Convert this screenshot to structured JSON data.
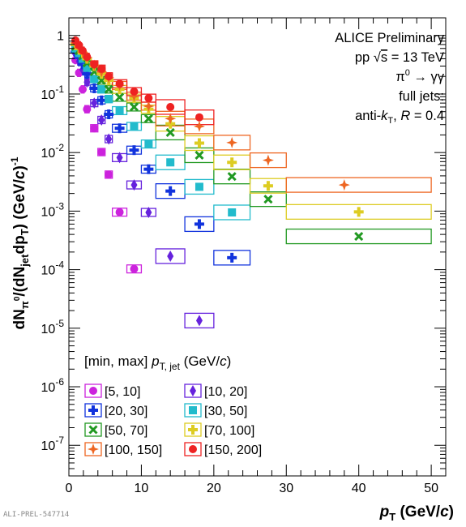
{
  "chart_data": {
    "type": "scatter",
    "title": "",
    "ylabel_parts": {
      "a": "dN",
      "b": "π",
      "c": "0",
      "d": "/(dN",
      "e": "jet",
      "f": "dp",
      "g": "T",
      "h": ") (GeV/",
      "i": "c",
      "j": ")",
      "k": "-1"
    },
    "xlabel_parts": {
      "a": "p",
      "b": "T",
      "c": " (GeV/",
      "d": "c",
      "e": ")"
    },
    "xlim": [
      0,
      52
    ],
    "ylim": [
      3e-08,
      2
    ],
    "yscale": "log",
    "x_ticks": [
      "0",
      "10",
      "20",
      "30",
      "40",
      "50"
    ],
    "y_ticks": [
      {
        "base": "1",
        "exp": ""
      },
      {
        "base": "10",
        "exp": "-1"
      },
      {
        "base": "10",
        "exp": "-2"
      },
      {
        "base": "10",
        "exp": "-3"
      },
      {
        "base": "10",
        "exp": "-4"
      },
      {
        "base": "10",
        "exp": "-5"
      },
      {
        "base": "10",
        "exp": "-6"
      },
      {
        "base": "10",
        "exp": "-7"
      }
    ],
    "annotations": {
      "line1": "ALICE Preliminary",
      "line2_pp": "pp",
      "line2_sqrt": "√",
      "line2_s": "s",
      "line2_val": " = 13 TeV",
      "line3_pi": "π",
      "line3_sup": "0",
      "line3_rest": " → γγ",
      "line4": "full jets:",
      "line5_a": "anti-",
      "line5_k": "k",
      "line5_T": "T",
      "line5_b": ", ",
      "line5_R": "R",
      "line5_c": " = 0.4"
    },
    "legend_title_parts": {
      "a": "[min, max] ",
      "b": "p",
      "c": "T, jet",
      "d": " (GeV/",
      "e": "c",
      "f": ")"
    },
    "series": [
      {
        "name": "[5, 10]",
        "color": "#cc22dd",
        "marker": "circle",
        "points": [
          [
            0.9,
            0.38,
            0.8,
            1.0
          ],
          [
            1.4,
            0.23,
            1.2,
            1.6
          ],
          [
            1.9,
            0.12,
            1.7,
            2.1
          ],
          [
            2.5,
            0.055,
            2.2,
            2.8
          ],
          [
            3.5,
            0.026,
            3.0,
            4.0
          ],
          [
            4.5,
            0.0102,
            4.0,
            5.0
          ],
          [
            5.5,
            0.0042,
            5.0,
            6.0
          ],
          [
            7.0,
            0.00096,
            6.0,
            8.0
          ],
          [
            9.0,
            0.000103,
            8.0,
            10.0
          ]
        ]
      },
      {
        "name": "[10, 20]",
        "color": "#6622dd",
        "marker": "diamond",
        "points": [
          [
            0.9,
            0.48,
            0.8,
            1.0
          ],
          [
            1.4,
            0.36,
            1.2,
            1.6
          ],
          [
            1.9,
            0.26,
            1.7,
            2.1
          ],
          [
            2.5,
            0.16,
            2.2,
            2.8
          ],
          [
            3.5,
            0.07,
            3.0,
            4.0
          ],
          [
            4.5,
            0.036,
            4.0,
            5.0
          ],
          [
            5.5,
            0.017,
            5.0,
            6.0
          ],
          [
            7.0,
            0.0082,
            6.0,
            8.0
          ],
          [
            9.0,
            0.0028,
            8.0,
            10.0
          ],
          [
            11.0,
            0.00095,
            10.0,
            12.0
          ],
          [
            14.0,
            0.00017,
            12.0,
            16.0
          ],
          [
            18.0,
            1.35e-05,
            16.0,
            20.0
          ]
        ]
      },
      {
        "name": "[20, 30]",
        "color": "#1133dd",
        "marker": "cross",
        "points": [
          [
            0.9,
            0.52,
            0.8,
            1.0
          ],
          [
            1.4,
            0.42,
            1.2,
            1.6
          ],
          [
            1.9,
            0.32,
            1.7,
            2.1
          ],
          [
            2.5,
            0.22,
            2.2,
            2.8
          ],
          [
            3.5,
            0.125,
            3.0,
            4.0
          ],
          [
            4.5,
            0.078,
            4.0,
            5.0
          ],
          [
            5.5,
            0.045,
            5.0,
            6.0
          ],
          [
            7.0,
            0.026,
            6.0,
            8.0
          ],
          [
            9.0,
            0.011,
            8.0,
            10.0
          ],
          [
            11.0,
            0.0052,
            10.0,
            12.0
          ],
          [
            14.0,
            0.0022,
            12.0,
            16.0
          ],
          [
            18.0,
            0.0006,
            16.0,
            20.0
          ],
          [
            22.5,
            0.00016,
            20.0,
            25.0
          ]
        ]
      },
      {
        "name": "[30, 50]",
        "color": "#22bbcc",
        "marker": "square",
        "points": [
          [
            0.9,
            0.6,
            0.8,
            1.0
          ],
          [
            1.4,
            0.5,
            1.2,
            1.6
          ],
          [
            1.9,
            0.4,
            1.7,
            2.1
          ],
          [
            2.5,
            0.28,
            2.2,
            2.8
          ],
          [
            3.5,
            0.18,
            3.0,
            4.0
          ],
          [
            4.5,
            0.12,
            4.0,
            5.0
          ],
          [
            5.5,
            0.082,
            5.0,
            6.0
          ],
          [
            7.0,
            0.052,
            6.0,
            8.0
          ],
          [
            9.0,
            0.028,
            8.0,
            10.0
          ],
          [
            11.0,
            0.014,
            10.0,
            12.0
          ],
          [
            14.0,
            0.0068,
            12.0,
            16.0
          ],
          [
            18.0,
            0.0026,
            16.0,
            20.0
          ],
          [
            22.5,
            0.00095,
            20.0,
            25.0
          ]
        ]
      },
      {
        "name": "[50, 70]",
        "color": "#229922",
        "marker": "x",
        "points": [
          [
            0.9,
            0.65,
            0.8,
            1.0
          ],
          [
            1.4,
            0.55,
            1.2,
            1.6
          ],
          [
            1.9,
            0.45,
            1.7,
            2.1
          ],
          [
            2.5,
            0.34,
            2.2,
            2.8
          ],
          [
            3.5,
            0.24,
            3.0,
            4.0
          ],
          [
            4.5,
            0.17,
            4.0,
            5.0
          ],
          [
            5.5,
            0.12,
            5.0,
            6.0
          ],
          [
            7.0,
            0.088,
            6.0,
            8.0
          ],
          [
            9.0,
            0.06,
            8.0,
            10.0
          ],
          [
            11.0,
            0.038,
            10.0,
            12.0
          ],
          [
            14.0,
            0.022,
            12.0,
            16.0
          ],
          [
            18.0,
            0.009,
            16.0,
            20.0
          ],
          [
            22.5,
            0.0039,
            20.0,
            25.0
          ],
          [
            27.5,
            0.0016,
            25.0,
            30.0
          ],
          [
            40.0,
            0.00037,
            30.0,
            50.0
          ]
        ]
      },
      {
        "name": "[70, 100]",
        "color": "#ddcc22",
        "marker": "cross",
        "points": [
          [
            0.9,
            0.7,
            0.8,
            1.0
          ],
          [
            1.4,
            0.6,
            1.2,
            1.6
          ],
          [
            1.9,
            0.5,
            1.7,
            2.1
          ],
          [
            2.5,
            0.4,
            2.2,
            2.8
          ],
          [
            3.5,
            0.3,
            3.0,
            4.0
          ],
          [
            4.5,
            0.22,
            4.0,
            5.0
          ],
          [
            5.5,
            0.17,
            5.0,
            6.0
          ],
          [
            7.0,
            0.12,
            6.0,
            8.0
          ],
          [
            9.0,
            0.085,
            8.0,
            10.0
          ],
          [
            11.0,
            0.055,
            10.0,
            12.0
          ],
          [
            14.0,
            0.031,
            12.0,
            16.0
          ],
          [
            18.0,
            0.0145,
            16.0,
            20.0
          ],
          [
            22.5,
            0.0068,
            20.0,
            25.0
          ],
          [
            27.5,
            0.0027,
            25.0,
            30.0
          ],
          [
            40.0,
            0.00097,
            30.0,
            50.0
          ]
        ]
      },
      {
        "name": "[100, 150]",
        "color": "#ee6622",
        "marker": "star",
        "points": [
          [
            0.9,
            0.75,
            0.8,
            1.0
          ],
          [
            1.4,
            0.62,
            1.2,
            1.6
          ],
          [
            1.9,
            0.52,
            1.7,
            2.1
          ],
          [
            2.5,
            0.42,
            2.2,
            2.8
          ],
          [
            3.5,
            0.31,
            3.0,
            4.0
          ],
          [
            4.5,
            0.24,
            4.0,
            5.0
          ],
          [
            5.5,
            0.19,
            5.0,
            6.0
          ],
          [
            7.0,
            0.14,
            6.0,
            8.0
          ],
          [
            9.0,
            0.092,
            8.0,
            10.0
          ],
          [
            11.0,
            0.062,
            10.0,
            12.0
          ],
          [
            14.0,
            0.038,
            12.0,
            16.0
          ],
          [
            18.0,
            0.028,
            16.0,
            20.0
          ],
          [
            22.5,
            0.0148,
            20.0,
            25.0
          ],
          [
            27.5,
            0.0074,
            25.0,
            30.0
          ],
          [
            38.0,
            0.0028,
            30.0,
            50.0
          ]
        ]
      },
      {
        "name": "[150, 200]",
        "color": "#ee2222",
        "marker": "circle",
        "points": [
          [
            0.9,
            0.82,
            0.8,
            1.0
          ],
          [
            1.4,
            0.68,
            1.2,
            1.6
          ],
          [
            1.9,
            0.55,
            1.7,
            2.1
          ],
          [
            2.5,
            0.43,
            2.2,
            2.8
          ],
          [
            3.5,
            0.32,
            3.0,
            4.0
          ],
          [
            4.5,
            0.27,
            4.0,
            5.0
          ],
          [
            5.5,
            0.2,
            5.0,
            6.0
          ],
          [
            7.0,
            0.15,
            6.0,
            8.0
          ],
          [
            9.0,
            0.11,
            8.0,
            10.0
          ],
          [
            11.0,
            0.085,
            10.0,
            12.0
          ],
          [
            14.0,
            0.06,
            12.0,
            16.0
          ],
          [
            18.0,
            0.04,
            16.0,
            20.0
          ]
        ]
      }
    ]
  },
  "footer": "ALI-PREL-547714"
}
